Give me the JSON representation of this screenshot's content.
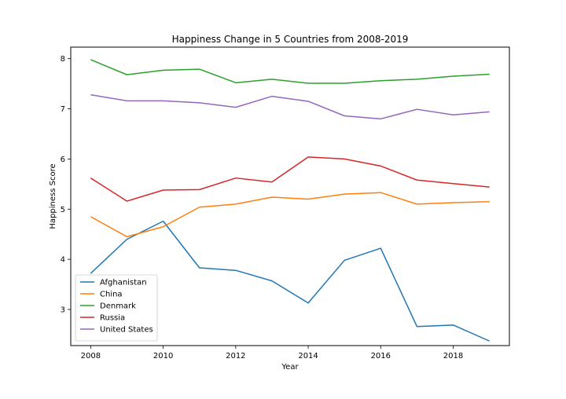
{
  "chart_data": {
    "type": "line",
    "title": "Happiness Change in 5 Countries from 2008-2019",
    "xlabel": "Year",
    "ylabel": "Happiness Score",
    "x": [
      2008,
      2009,
      2010,
      2011,
      2012,
      2013,
      2014,
      2015,
      2016,
      2017,
      2018,
      2019
    ],
    "xlim": [
      2007.45,
      2019.55
    ],
    "ylim": [
      2.28,
      8.23
    ],
    "x_ticks": [
      2008,
      2010,
      2012,
      2014,
      2016,
      2018
    ],
    "y_ticks": [
      3,
      4,
      5,
      6,
      7,
      8
    ],
    "grid": false,
    "legend_position": "lower-left",
    "series": [
      {
        "name": "Afghanistan",
        "color": "#1f77b4",
        "values": [
          3.72,
          4.4,
          4.76,
          3.83,
          3.78,
          3.57,
          3.13,
          3.98,
          4.22,
          2.66,
          2.69,
          2.37
        ]
      },
      {
        "name": "China",
        "color": "#ff7f0e",
        "values": [
          4.85,
          4.45,
          4.65,
          5.04,
          5.1,
          5.24,
          5.2,
          5.3,
          5.33,
          5.1,
          5.13,
          5.15
        ]
      },
      {
        "name": "Denmark",
        "color": "#2ca02c",
        "values": [
          7.98,
          7.68,
          7.77,
          7.79,
          7.52,
          7.59,
          7.51,
          7.51,
          7.56,
          7.59,
          7.65,
          7.69
        ]
      },
      {
        "name": "Russia",
        "color": "#d62728",
        "values": [
          5.62,
          5.16,
          5.38,
          5.39,
          5.62,
          5.54,
          6.04,
          6.0,
          5.86,
          5.58,
          5.51,
          5.44
        ]
      },
      {
        "name": "United States",
        "color": "#9467bd",
        "values": [
          7.28,
          7.16,
          7.16,
          7.12,
          7.03,
          7.25,
          7.15,
          6.86,
          6.8,
          6.99,
          6.88,
          6.94
        ]
      }
    ]
  }
}
